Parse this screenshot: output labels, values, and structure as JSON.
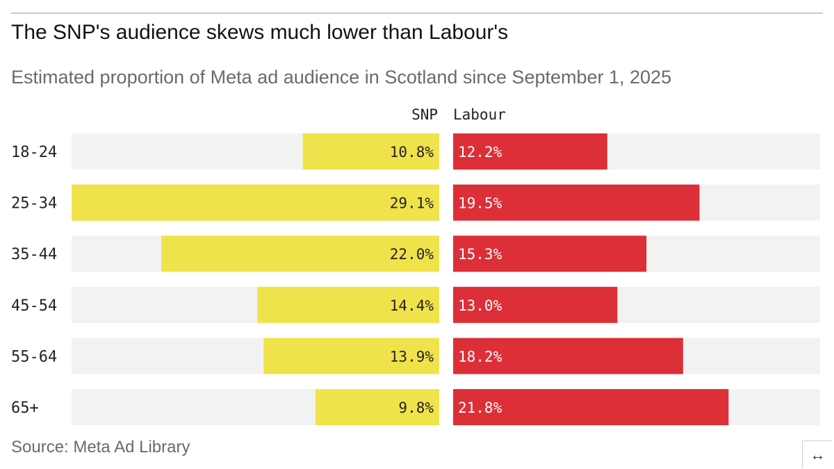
{
  "title": "The SNP's audience skews much lower than Labour's",
  "subtitle": "Estimated proportion of Meta ad audience in Scotland since September 1, 2025",
  "source": "Source: Meta Ad Library",
  "expand_icon": "↔",
  "colors": {
    "snp": "#f0e24a",
    "labour": "#dc2f37",
    "track": "#f2f2f2"
  },
  "chart_data": {
    "type": "bar",
    "orientation": "horizontal-diverging",
    "categories": [
      "18-24",
      "25-34",
      "35-44",
      "45-54",
      "55-64",
      "65+"
    ],
    "series": [
      {
        "name": "SNP",
        "values": [
          10.8,
          29.1,
          22.0,
          14.4,
          13.9,
          9.8
        ],
        "labels": [
          "10.8%",
          "29.1%",
          "22.0%",
          "14.4%",
          "13.9%",
          "9.8%"
        ]
      },
      {
        "name": "Labour",
        "values": [
          12.2,
          19.5,
          15.3,
          13.0,
          18.2,
          21.8
        ],
        "labels": [
          "12.2%",
          "19.5%",
          "15.3%",
          "13.0%",
          "18.2%",
          "21.8%"
        ]
      }
    ],
    "xlim": [
      0,
      29.1
    ],
    "unit": "%",
    "legend": "column headers above bars"
  }
}
